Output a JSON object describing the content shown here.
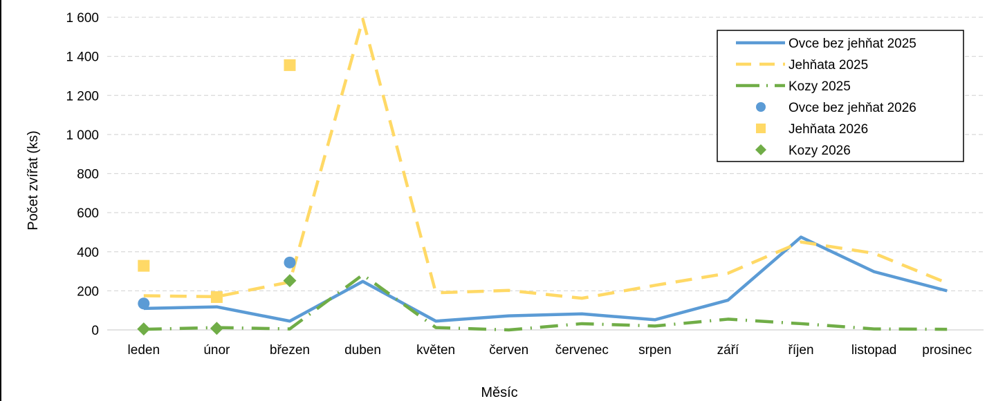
{
  "chart_data": {
    "type": "line",
    "xlabel": "Měsíc",
    "ylabel": "Počet zvířat (ks)",
    "categories": [
      "leden",
      "únor",
      "březen",
      "duben",
      "květen",
      "červen",
      "červenec",
      "srpen",
      "září",
      "říjen",
      "listopad",
      "prosinec"
    ],
    "ylim": [
      0,
      1600
    ],
    "y_ticks": [
      0,
      200,
      400,
      600,
      800,
      1000,
      1200,
      1400,
      1600
    ],
    "y_tick_labels": [
      "0",
      "200",
      "400",
      "600",
      "800",
      "1 000",
      "1 200",
      "1 400",
      "1 600"
    ],
    "grid": "horizontal dashed",
    "legend_position": "top-right",
    "series": [
      {
        "name": "Ovce bez jehňat 2025",
        "kind": "line",
        "style": "solid",
        "color": "#5b9bd5",
        "values": [
          110,
          118,
          45,
          248,
          45,
          72,
          82,
          52,
          152,
          475,
          298,
          200
        ]
      },
      {
        "name": "Jehňata 2025",
        "kind": "line",
        "style": "dashed",
        "color": "#ffd966",
        "values": [
          175,
          170,
          245,
          1590,
          190,
          202,
          162,
          228,
          290,
          450,
          392,
          240
        ]
      },
      {
        "name": "Kozy 2025",
        "kind": "line",
        "style": "dash-dot",
        "color": "#70ad47",
        "values": [
          3,
          12,
          5,
          282,
          12,
          0,
          32,
          20,
          55,
          32,
          5,
          3
        ]
      },
      {
        "name": "Ovce bez jehňat 2026",
        "kind": "marker",
        "marker": "circle",
        "color": "#5b9bd5",
        "values": [
          135,
          null,
          345,
          null,
          null,
          null,
          null,
          null,
          null,
          null,
          null,
          null
        ]
      },
      {
        "name": "Jehňata 2026",
        "kind": "marker",
        "marker": "square",
        "color": "#ffd966",
        "values": [
          328,
          168,
          1355,
          null,
          null,
          null,
          null,
          null,
          null,
          null,
          null,
          null
        ]
      },
      {
        "name": "Kozy 2026",
        "kind": "marker",
        "marker": "diamond",
        "color": "#70ad47",
        "values": [
          5,
          8,
          252,
          null,
          null,
          null,
          null,
          null,
          null,
          null,
          null,
          null
        ]
      }
    ]
  }
}
